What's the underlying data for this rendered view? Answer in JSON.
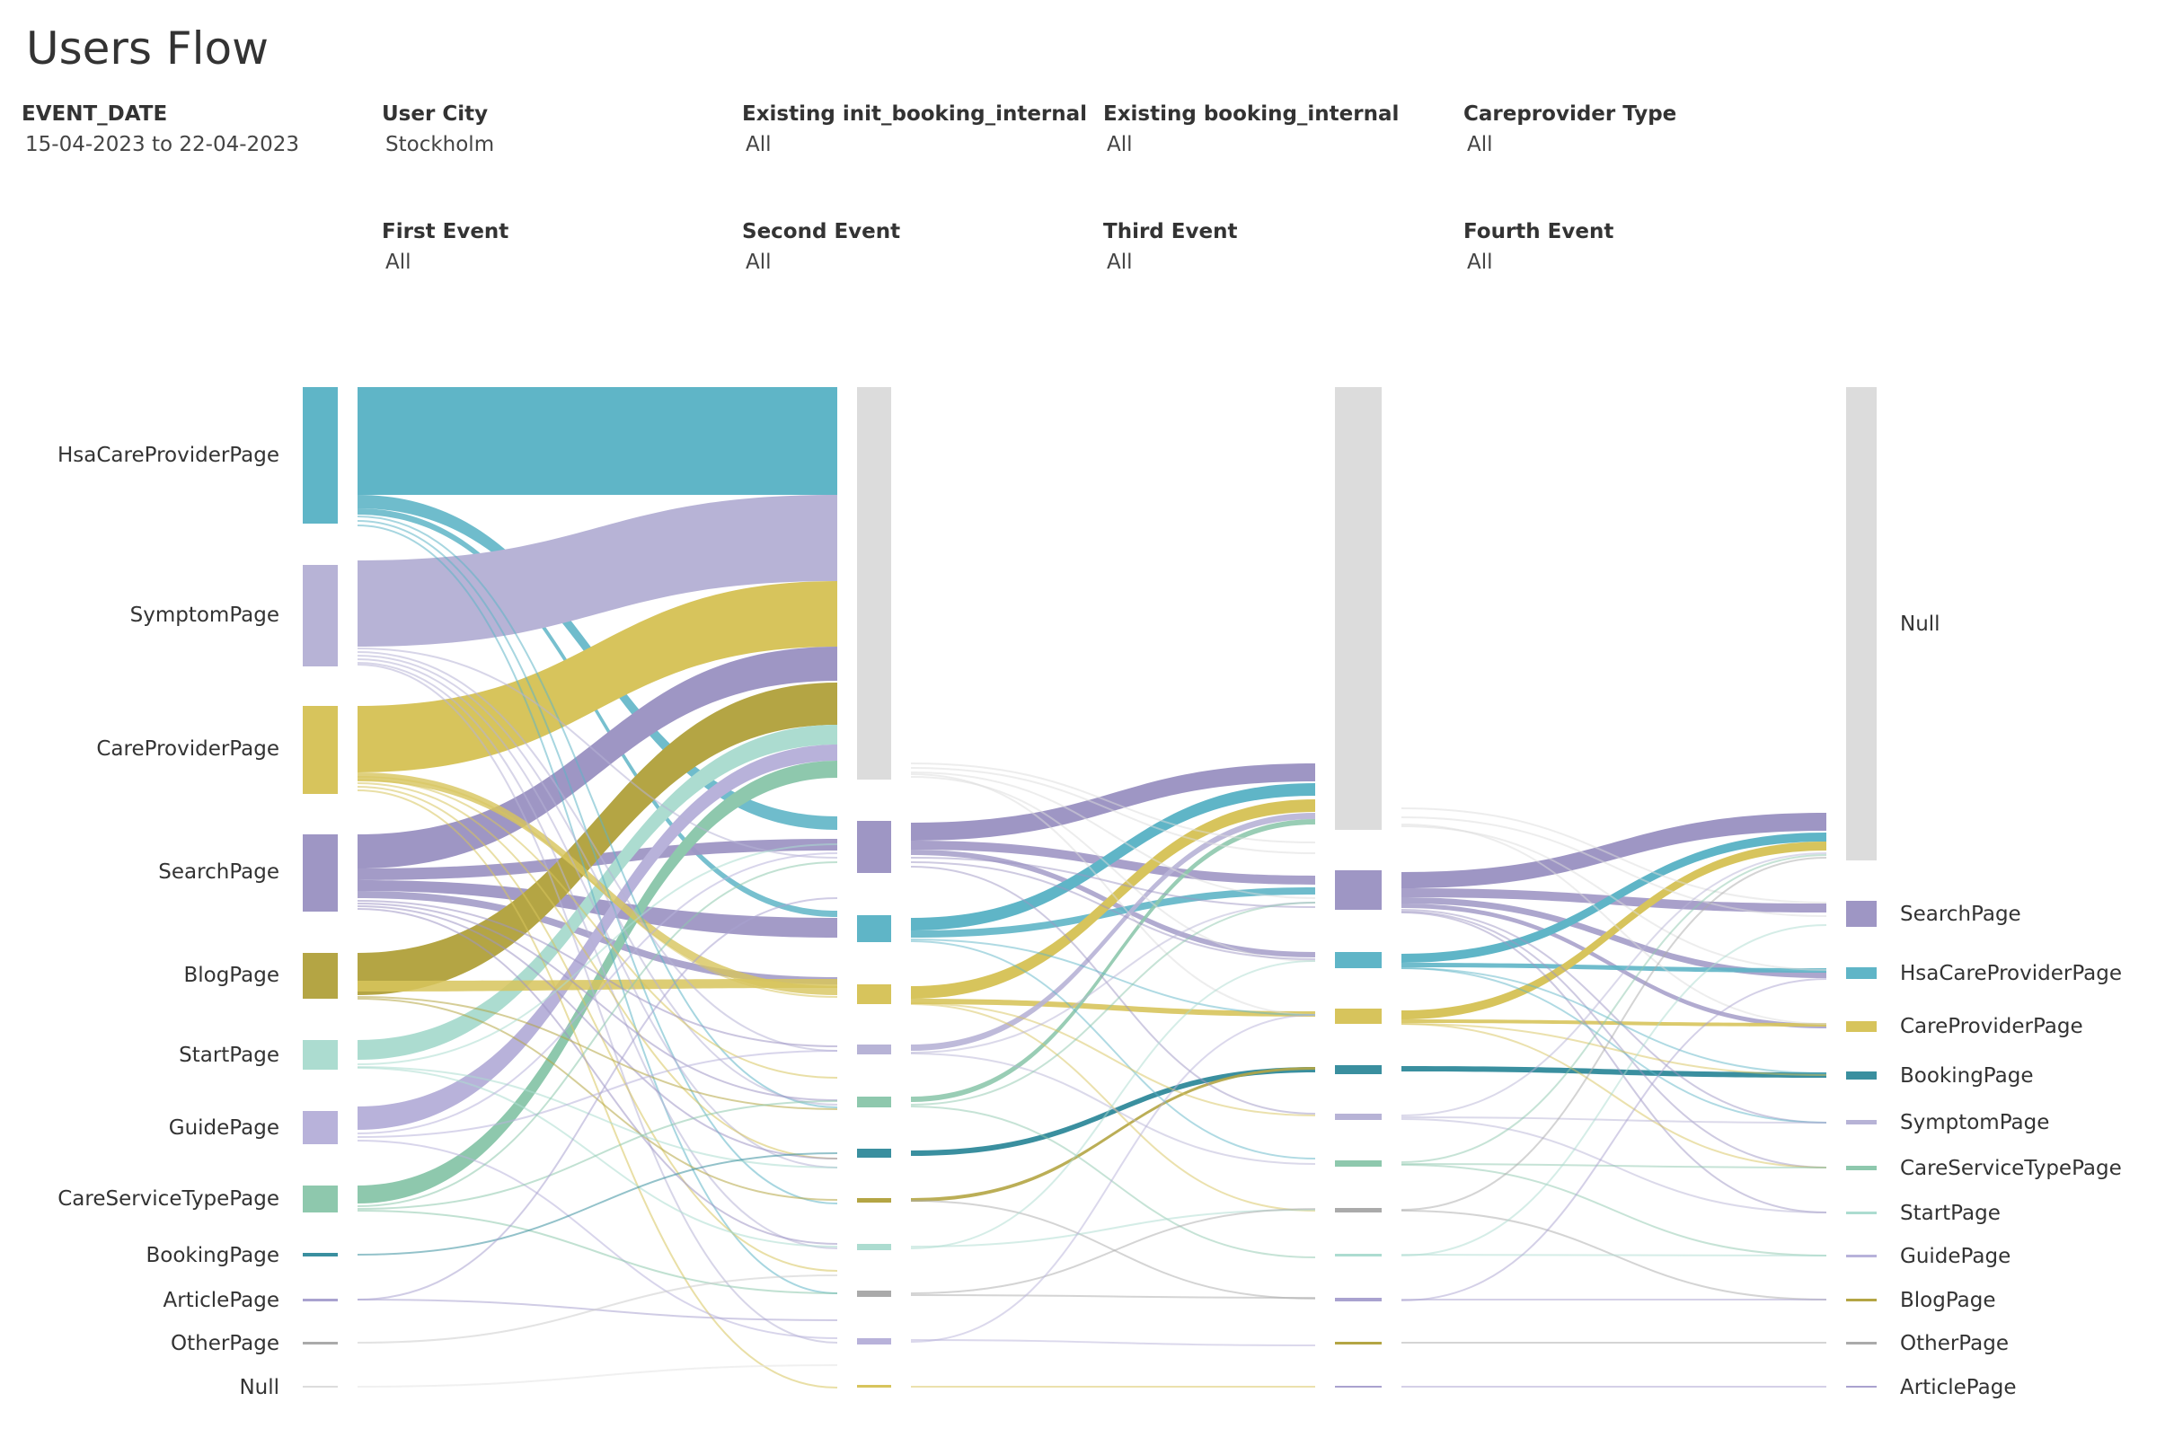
{
  "page": {
    "title": "Users Flow"
  },
  "filters": [
    {
      "label": "EVENT_DATE",
      "value": "15-04-2023 to 22-04-2023"
    },
    {
      "label": "User City",
      "value": "Stockholm"
    },
    {
      "label": "Existing init_booking_internal",
      "value": "All"
    },
    {
      "label": "Existing booking_internal",
      "value": "All"
    },
    {
      "label": "Careprovider Type",
      "value": "All"
    },
    {
      "label": "First Event",
      "value": "All"
    },
    {
      "label": "Second Event",
      "value": "All"
    },
    {
      "label": "Third Event",
      "value": "All"
    },
    {
      "label": "Fourth Event",
      "value": "All"
    }
  ],
  "colors": {
    "HsaCareProviderPage": "#5fb5c7",
    "SymptomPage": "#b7b3d6",
    "CareProviderPage": "#d7c45c",
    "SearchPage": "#9e96c4",
    "BlogPage": "#b4a544",
    "StartPage": "#acdcd0",
    "GuidePage": "#b8b2da",
    "CareServiceTypePage": "#8ec8ad",
    "BookingPage": "#3a8f9f",
    "ArticlePage": "#a9a2cf",
    "OtherPage": "#aaaaaa",
    "Null": "#dcdcdc"
  },
  "chart_data": {
    "type": "sankey",
    "stages": [
      "First Event",
      "Second Event",
      "Third Event",
      "Fourth Event"
    ],
    "stage1_nodes": [
      {
        "name": "HsaCareProviderPage",
        "value": 10.0
      },
      {
        "name": "SymptomPage",
        "value": 7.5
      },
      {
        "name": "CareProviderPage",
        "value": 6.5
      },
      {
        "name": "SearchPage",
        "value": 5.7
      },
      {
        "name": "BlogPage",
        "value": 3.4
      },
      {
        "name": "StartPage",
        "value": 2.2
      },
      {
        "name": "GuidePage",
        "value": 2.4
      },
      {
        "name": "CareServiceTypePage",
        "value": 2.0
      },
      {
        "name": "BookingPage",
        "value": 0.3
      },
      {
        "name": "ArticlePage",
        "value": 0.2
      },
      {
        "name": "OtherPage",
        "value": 0.15
      },
      {
        "name": "Null",
        "value": 0.1
      }
    ],
    "stage4_legend": [
      "Null",
      "SearchPage",
      "HsaCareProviderPage",
      "CareProviderPage",
      "BookingPage",
      "SymptomPage",
      "CareServiceTypePage",
      "StartPage",
      "GuidePage",
      "BlogPage",
      "OtherPage",
      "ArticlePage"
    ]
  }
}
